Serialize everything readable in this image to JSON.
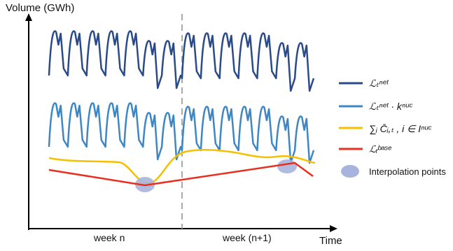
{
  "axes": {
    "y_label": "Volume (GWh)",
    "x_label": "Time"
  },
  "weeks": {
    "left": "week n",
    "right": "week (n+1)"
  },
  "legend": [
    {
      "id": "net",
      "text": "ℒₜⁿᵉᵗ",
      "color": "#2b4a8a"
    },
    {
      "id": "net_nuc",
      "text": "ℒₜⁿᵉᵗ · kⁿᵘᶜ",
      "color": "#3e86c4"
    },
    {
      "id": "sum_c",
      "text": "∑ᵢ C̄ᵢ,ₜ ,  i ∈ Iⁿᵘᶜ",
      "color": "#f5c000"
    },
    {
      "id": "base",
      "text": "ℒᵣᵇᵃˢᵉ",
      "color": "#e83020"
    },
    {
      "id": "interp",
      "text": "Interpolation points",
      "color": "#a8b4dd"
    }
  ]
}
